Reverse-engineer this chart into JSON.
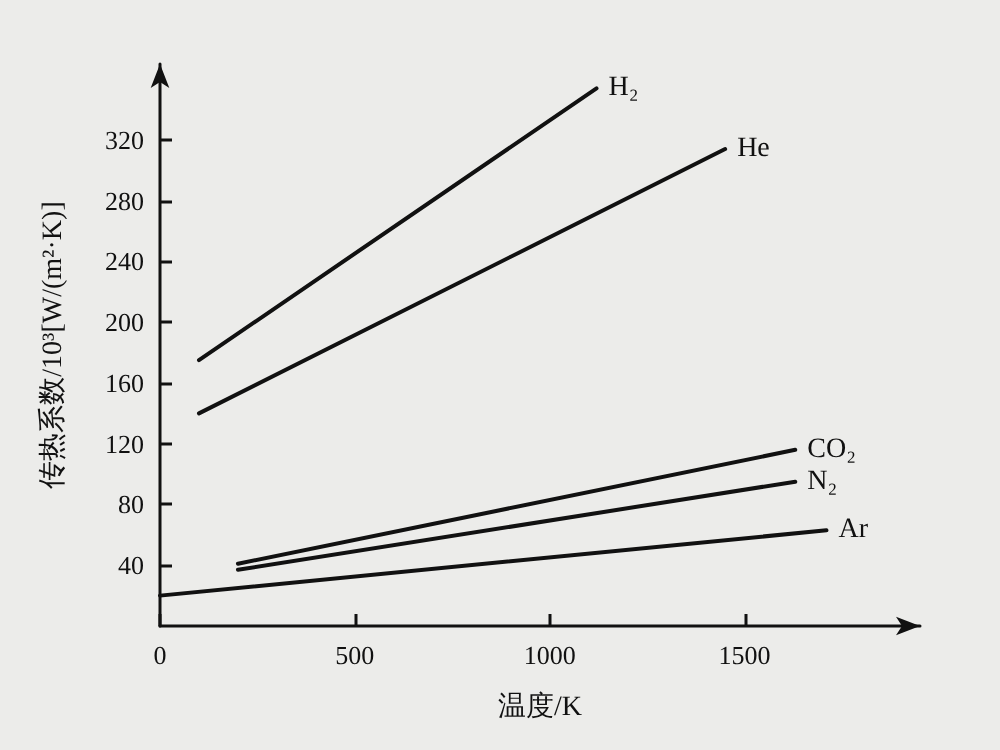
{
  "chart_data": {
    "type": "line",
    "xlabel": "温度/K",
    "ylabel": "传热系数/10³[W/(m²·K)]",
    "series": [
      {
        "name": "H₂",
        "color": "#111111",
        "x": [
          100,
          1120
        ],
        "values": [
          175,
          354
        ]
      },
      {
        "name": "He",
        "color": "#111111",
        "x": [
          100,
          1450
        ],
        "values": [
          140,
          314
        ]
      },
      {
        "name": "CO₂",
        "color": "#111111",
        "x": [
          200,
          1630
        ],
        "values": [
          41,
          116
        ]
      },
      {
        "name": "N₂",
        "color": "#111111",
        "x": [
          200,
          1630
        ],
        "values": [
          37,
          95
        ]
      },
      {
        "name": "Ar",
        "color": "#111111",
        "x": [
          0,
          1710
        ],
        "values": [
          20,
          63
        ]
      }
    ],
    "xlim": [
      0,
      1950
    ],
    "xticks": [
      0,
      500,
      1000,
      1500
    ],
    "ylim": [
      0,
      370
    ],
    "yticks": [
      40,
      80,
      120,
      160,
      200,
      240,
      280,
      320
    ],
    "grid": false,
    "legend": false,
    "marker": "none",
    "line_style": "solid"
  }
}
